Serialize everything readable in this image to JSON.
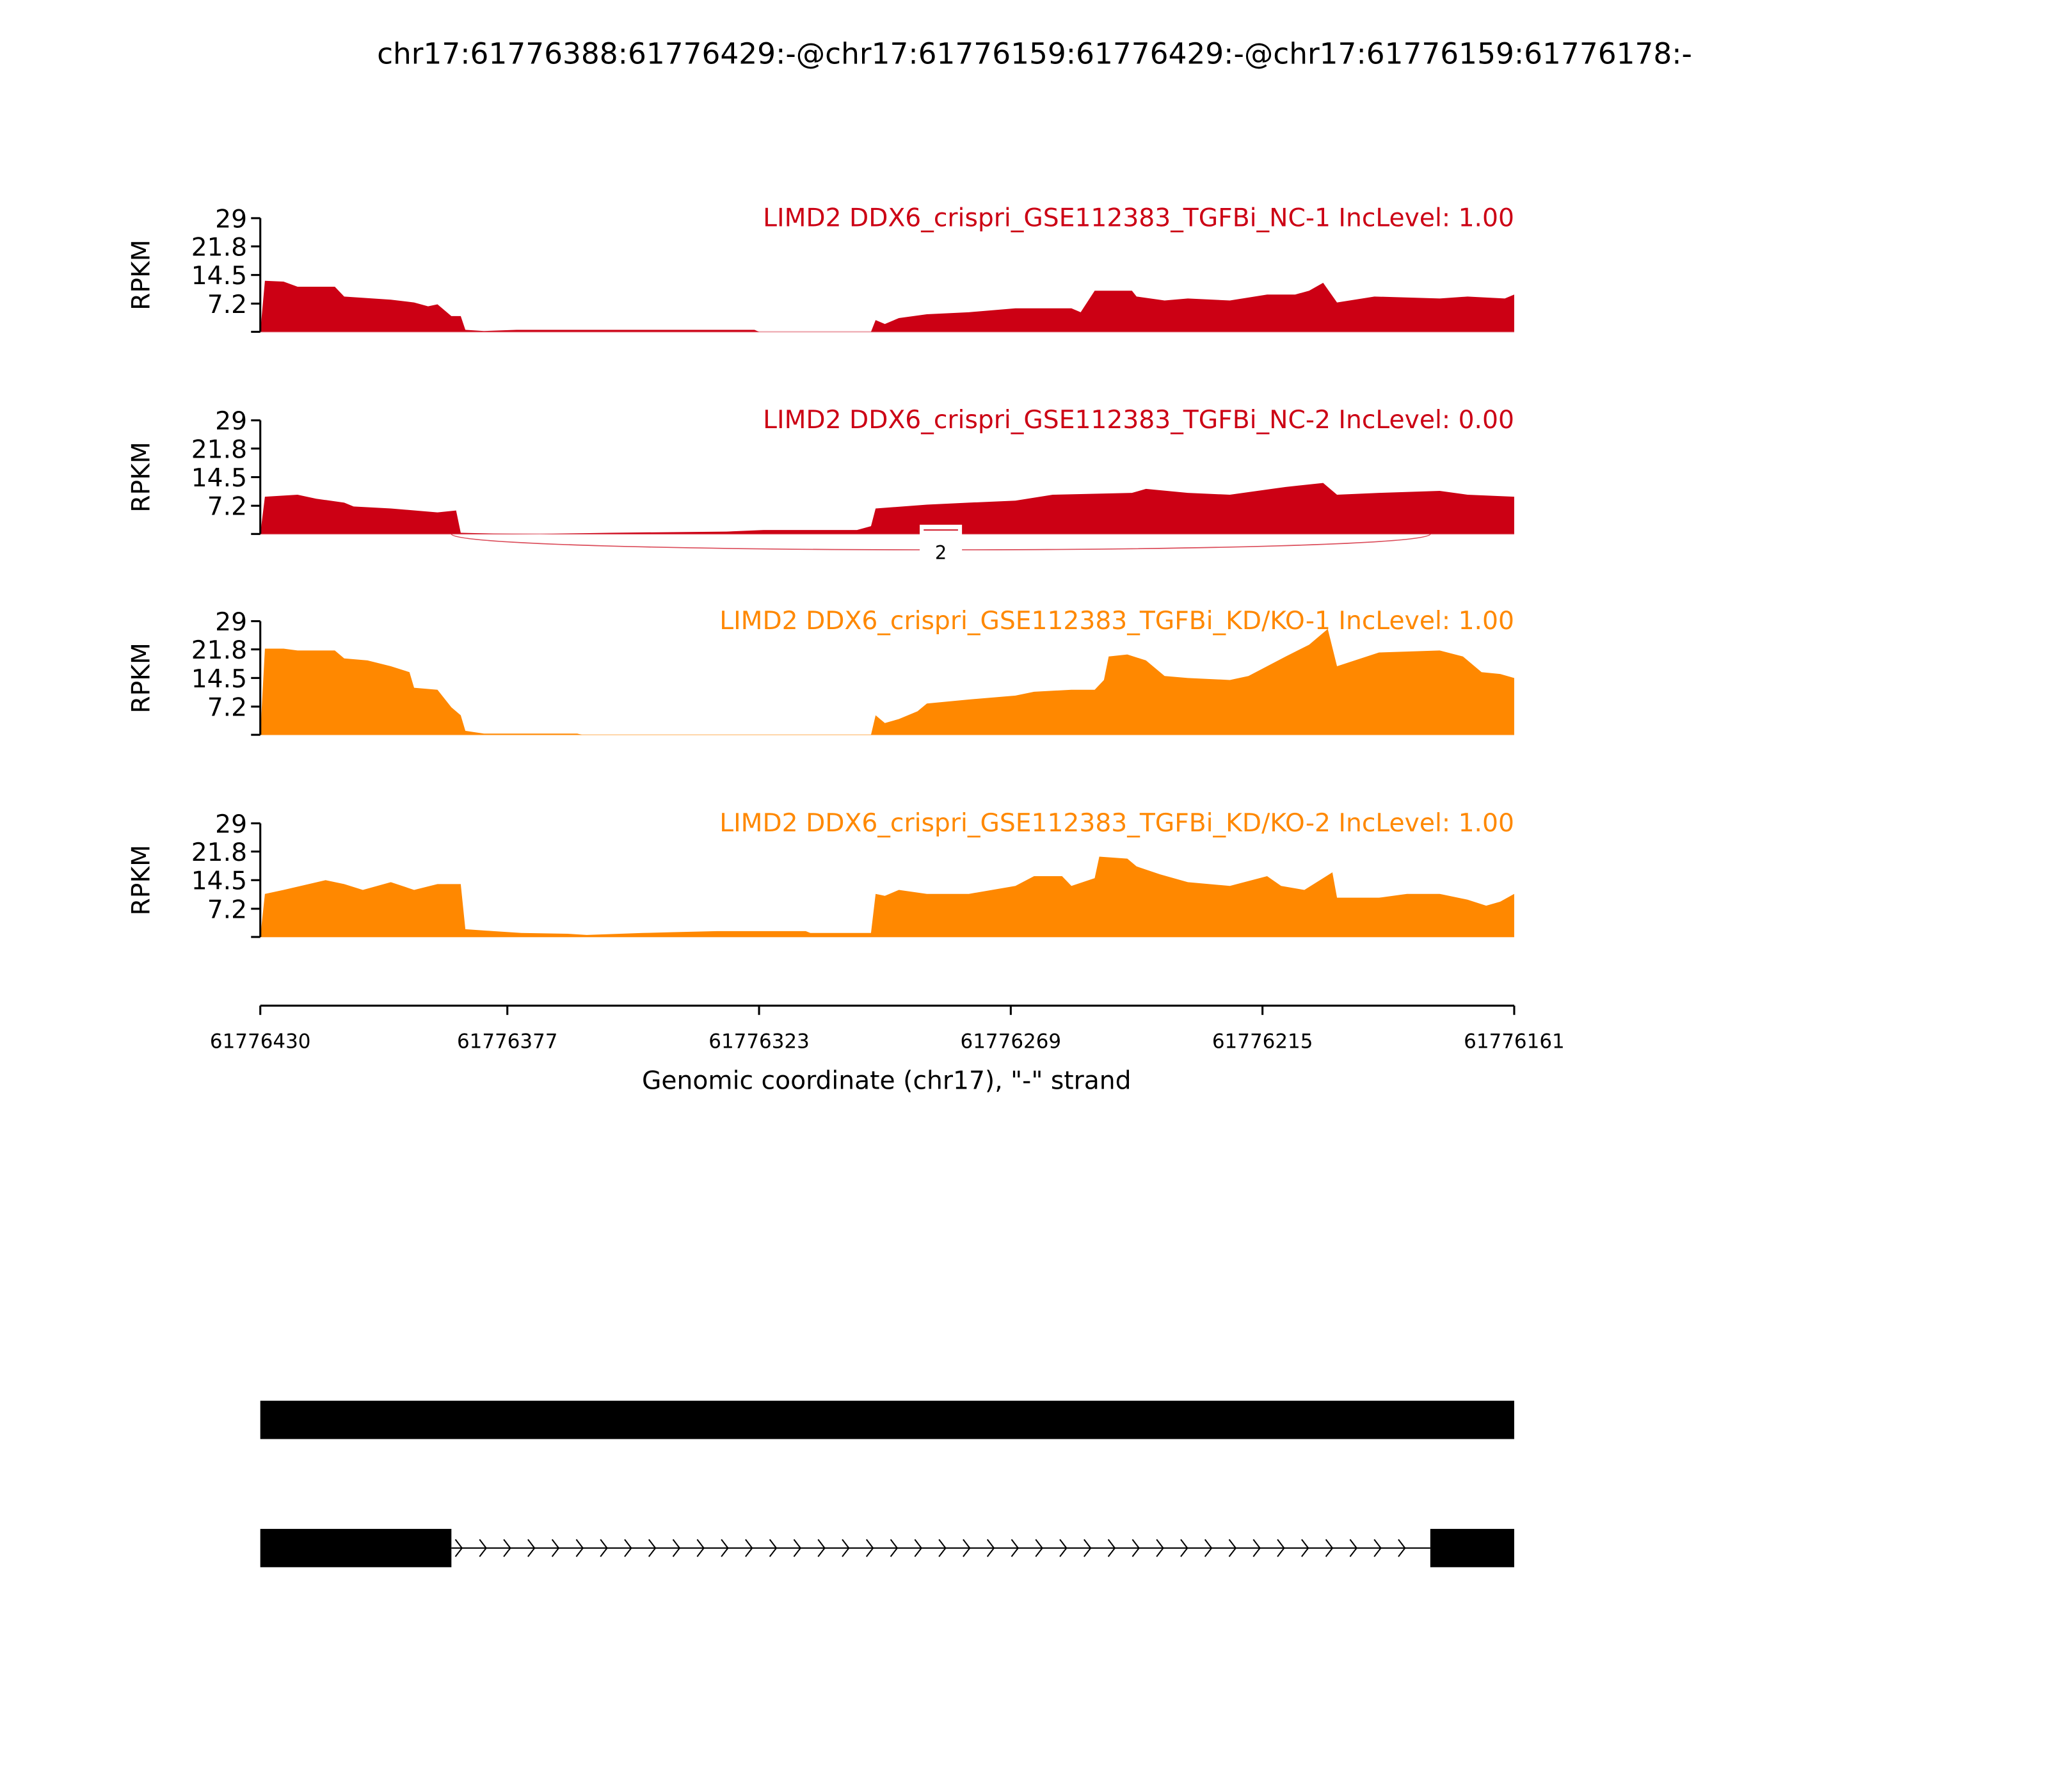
{
  "chart_data": {
    "type": "area",
    "title": "chr17:61776388:61776429:-@chr17:61776159:61776429:-@chr17:61776159:61776178:-",
    "xlabel": "Genomic coordinate (chr17), \"-\" strand",
    "ylabel": "RPKM",
    "xlim": [
      61776430,
      61776161
    ],
    "ylim": [
      0,
      29
    ],
    "y_ticks": [
      "29",
      "21.8",
      "14.5",
      "7.2"
    ],
    "y_tick_values": [
      29,
      21.8,
      14.5,
      7.2
    ],
    "x_ticks": [
      "61776430",
      "61776377",
      "61776323",
      "61776269",
      "61776215",
      "61776161"
    ],
    "x_tick_values": [
      61776430,
      61776377,
      61776323,
      61776269,
      61776215,
      61776161
    ],
    "colors": {
      "NC": "#cc0014",
      "KD": "#ff8800"
    },
    "tracks": [
      {
        "label": "LIMD2 DDX6_crispri_GSE112383_TGFBi_NC-1 IncLevel: 1.00",
        "group": "NC",
        "offset_points": [
          [
            0,
            0
          ],
          [
            1,
            13
          ],
          [
            5,
            12.8
          ],
          [
            8,
            11.5
          ],
          [
            16,
            11.5
          ],
          [
            18,
            9
          ],
          [
            28,
            8.2
          ],
          [
            33,
            7.5
          ],
          [
            36,
            6.5
          ],
          [
            38,
            7
          ],
          [
            41,
            4
          ],
          [
            43,
            4
          ],
          [
            44,
            0.5
          ],
          [
            48,
            0.2
          ],
          [
            55,
            0.5
          ],
          [
            106,
            0.5
          ],
          [
            107,
            0
          ],
          [
            131,
            0
          ],
          [
            132,
            3
          ],
          [
            134,
            2
          ],
          [
            137,
            3.5
          ],
          [
            143,
            4.5
          ],
          [
            152,
            5
          ],
          [
            162,
            6
          ],
          [
            174,
            6
          ],
          [
            176,
            5
          ],
          [
            179,
            10.5
          ],
          [
            187,
            10.5
          ],
          [
            188,
            9
          ],
          [
            194,
            8
          ],
          [
            199,
            8.5
          ],
          [
            208,
            8
          ],
          [
            216,
            9.5
          ],
          [
            222,
            9.5
          ],
          [
            225,
            10.5
          ],
          [
            228,
            12.5
          ],
          [
            231,
            7.5
          ],
          [
            239,
            9
          ],
          [
            253,
            8.5
          ],
          [
            259,
            9
          ],
          [
            267,
            8.5
          ],
          [
            269,
            9.5
          ]
        ]
      },
      {
        "label": "LIMD2 DDX6_crispri_GSE112383_TGFBi_NC-2 IncLevel: 0.00",
        "group": "NC",
        "offset_points": [
          [
            0,
            0
          ],
          [
            1,
            9.5
          ],
          [
            8,
            10
          ],
          [
            12,
            9
          ],
          [
            18,
            8
          ],
          [
            20,
            7
          ],
          [
            28,
            6.5
          ],
          [
            38,
            5.5
          ],
          [
            42,
            6
          ],
          [
            43,
            0.3
          ],
          [
            50,
            0.1
          ],
          [
            60,
            0
          ],
          [
            75,
            0.3
          ],
          [
            100,
            0.6
          ],
          [
            108,
            1
          ],
          [
            128,
            1
          ],
          [
            131,
            2
          ],
          [
            132,
            6.5
          ],
          [
            143,
            7.5
          ],
          [
            152,
            8
          ],
          [
            162,
            8.5
          ],
          [
            170,
            10
          ],
          [
            187,
            10.5
          ],
          [
            190,
            11.5
          ],
          [
            199,
            10.5
          ],
          [
            208,
            10
          ],
          [
            220,
            12
          ],
          [
            228,
            13
          ],
          [
            231,
            10
          ],
          [
            240,
            10.5
          ],
          [
            253,
            11
          ],
          [
            259,
            10
          ],
          [
            269,
            9.5
          ]
        ],
        "junction": {
          "from_offset": 41,
          "to_offset": 251,
          "count": "2"
        }
      },
      {
        "label": "LIMD2 DDX6_crispri_GSE112383_TGFBi_KD/KO-1 IncLevel: 1.00",
        "group": "KD",
        "offset_points": [
          [
            0,
            0
          ],
          [
            1,
            22
          ],
          [
            5,
            22
          ],
          [
            8,
            21.5
          ],
          [
            16,
            21.5
          ],
          [
            18,
            19.5
          ],
          [
            23,
            19
          ],
          [
            28,
            17.5
          ],
          [
            32,
            16
          ],
          [
            33,
            12
          ],
          [
            38,
            11.5
          ],
          [
            41,
            7
          ],
          [
            43,
            5
          ],
          [
            44,
            1
          ],
          [
            48,
            0.3
          ],
          [
            68,
            0.3
          ],
          [
            69,
            0
          ],
          [
            131,
            0
          ],
          [
            132,
            5
          ],
          [
            134,
            3
          ],
          [
            137,
            4
          ],
          [
            141,
            6
          ],
          [
            143,
            8
          ],
          [
            152,
            9
          ],
          [
            162,
            10
          ],
          [
            166,
            11
          ],
          [
            174,
            11.5
          ],
          [
            179,
            11.5
          ],
          [
            181,
            14
          ],
          [
            182,
            20
          ],
          [
            186,
            20.5
          ],
          [
            190,
            19
          ],
          [
            194,
            15
          ],
          [
            199,
            14.5
          ],
          [
            208,
            14
          ],
          [
            212,
            15
          ],
          [
            220,
            20
          ],
          [
            225,
            23
          ],
          [
            229,
            27
          ],
          [
            231,
            17.5
          ],
          [
            240,
            21
          ],
          [
            253,
            21.5
          ],
          [
            258,
            20
          ],
          [
            262,
            16
          ],
          [
            266,
            15.5
          ],
          [
            269,
            14.5
          ]
        ]
      },
      {
        "label": "LIMD2 DDX6_crispri_GSE112383_TGFBi_KD/KO-2 IncLevel: 1.00",
        "group": "KD",
        "offset_points": [
          [
            0,
            0
          ],
          [
            1,
            11
          ],
          [
            5,
            12
          ],
          [
            14,
            14.5
          ],
          [
            18,
            13.5
          ],
          [
            22,
            12
          ],
          [
            28,
            14
          ],
          [
            33,
            12
          ],
          [
            38,
            13.5
          ],
          [
            43,
            13.5
          ],
          [
            44,
            2
          ],
          [
            50,
            1.5
          ],
          [
            56,
            1
          ],
          [
            66,
            0.8
          ],
          [
            70,
            0.5
          ],
          [
            82,
            1
          ],
          [
            88,
            1.2
          ],
          [
            98,
            1.5
          ],
          [
            117,
            1.5
          ],
          [
            118,
            1
          ],
          [
            131,
            1
          ],
          [
            132,
            11
          ],
          [
            134,
            10.5
          ],
          [
            137,
            12
          ],
          [
            143,
            11
          ],
          [
            152,
            11
          ],
          [
            162,
            13
          ],
          [
            166,
            15.5
          ],
          [
            172,
            15.5
          ],
          [
            174,
            13
          ],
          [
            179,
            15
          ],
          [
            180,
            20.5
          ],
          [
            186,
            20
          ],
          [
            188,
            18
          ],
          [
            193,
            16
          ],
          [
            199,
            14
          ],
          [
            208,
            13
          ],
          [
            216,
            15.5
          ],
          [
            219,
            13
          ],
          [
            224,
            12
          ],
          [
            228,
            15
          ],
          [
            230,
            16.5
          ],
          [
            231,
            10
          ],
          [
            240,
            10
          ],
          [
            246,
            11
          ],
          [
            253,
            11
          ],
          [
            259,
            9.5
          ],
          [
            263,
            8
          ],
          [
            266,
            9
          ],
          [
            269,
            11
          ]
        ]
      }
    ],
    "gene_models": [
      {
        "exons_offset": [
          [
            0,
            269
          ]
        ]
      },
      {
        "exons_offset": [
          [
            0,
            41
          ]
        ],
        "intron_offset": [
          41,
          251
        ],
        "exons2_offset": [
          [
            251,
            269
          ]
        ]
      }
    ]
  }
}
